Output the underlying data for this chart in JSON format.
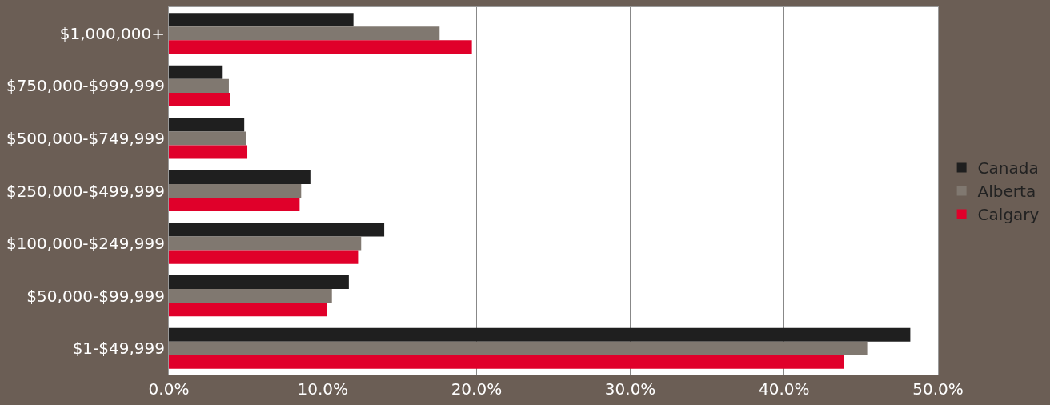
{
  "chart_data": {
    "type": "bar",
    "orientation": "horizontal",
    "categories": [
      "$1,000,000+",
      "$750,000-$999,999",
      "$500,000-$749,999",
      "$250,000-$499,999",
      "$100,000-$249,999",
      "$50,000-$99,999",
      "$1-$49,999"
    ],
    "series": [
      {
        "name": "Canada",
        "color": "#1f1f1f",
        "values": [
          12.0,
          3.5,
          4.9,
          9.2,
          14.0,
          11.7,
          48.2
        ]
      },
      {
        "name": "Alberta",
        "color": "#807870",
        "values": [
          17.6,
          3.9,
          5.0,
          8.6,
          12.5,
          10.6,
          45.4
        ]
      },
      {
        "name": "Calgary",
        "color": "#e0002a",
        "values": [
          19.7,
          4.0,
          5.1,
          8.5,
          12.3,
          10.3,
          43.9
        ]
      }
    ],
    "xlim": [
      0,
      50
    ],
    "xticks": [
      {
        "value": 0,
        "label": "0.0%"
      },
      {
        "value": 10,
        "label": "10.0%"
      },
      {
        "value": 20,
        "label": "20.0%"
      },
      {
        "value": 30,
        "label": "30.0%"
      },
      {
        "value": 40,
        "label": "40.0%"
      },
      {
        "value": 50,
        "label": "50.0%"
      }
    ],
    "grid": "x",
    "legend": "right"
  }
}
